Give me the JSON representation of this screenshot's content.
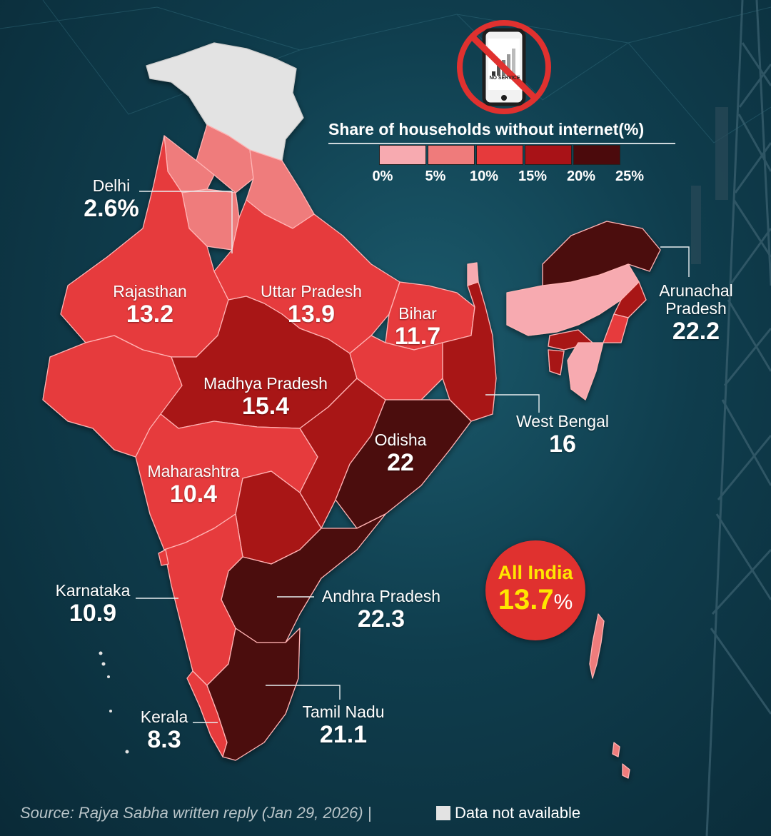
{
  "legend": {
    "title": "Share of households without internet(%)",
    "ticks": [
      "0%",
      "5%",
      "10%",
      "15%",
      "20%",
      "25%"
    ],
    "colors": [
      "#f7aab0",
      "#ef7b7b",
      "#e63a3c",
      "#a81217",
      "#4b0a0c"
    ]
  },
  "icon": {
    "name": "no-signal-phone-icon",
    "caption": "NO SERVICE"
  },
  "states": [
    {
      "name": "Delhi",
      "value": "2.6%"
    },
    {
      "name": "Rajasthan",
      "value": "13.2"
    },
    {
      "name": "Uttar Pradesh",
      "value": "13.9"
    },
    {
      "name": "Bihar",
      "value": "11.7"
    },
    {
      "name": "Arunachal Pradesh",
      "value": "22.2"
    },
    {
      "name": "Madhya Pradesh",
      "value": "15.4"
    },
    {
      "name": "West Bengal",
      "value": "16"
    },
    {
      "name": "Odisha",
      "value": "22"
    },
    {
      "name": "Maharashtra",
      "value": "10.4"
    },
    {
      "name": "Karnataka",
      "value": "10.9"
    },
    {
      "name": "Andhra Pradesh",
      "value": "22.3"
    },
    {
      "name": "Tamil Nadu",
      "value": "21.1"
    },
    {
      "name": "Kerala",
      "value": "8.3"
    }
  ],
  "all_india": {
    "label": "All India",
    "value": "13.7",
    "unit": "%"
  },
  "source": "Source: Rajya Sabha written reply (Jan 29, 2026) |",
  "not_available_label": "Data not available",
  "colors": {
    "na": "#e3e3e3",
    "background": "#0f3d4d",
    "badge": "#e0312f",
    "badge_text": "#ffe600"
  }
}
